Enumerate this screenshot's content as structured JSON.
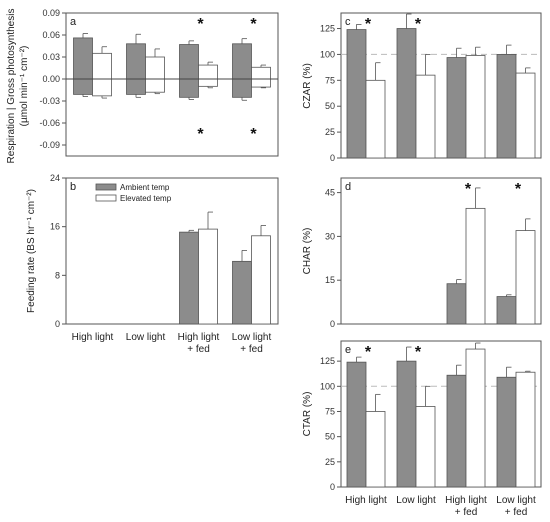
{
  "groups": [
    "High light",
    "Low light",
    "High light\n+ fed",
    "Low light\n+ fed"
  ],
  "legend": {
    "ambient": "Ambient temp",
    "elevated": "Elevated temp"
  },
  "colors": {
    "ambient": "#8c8c8c",
    "elevated": "#ffffff",
    "stroke": "#555555",
    "ref": "#bbbbbb"
  },
  "chart_data": [
    {
      "id": "a",
      "type": "bar",
      "panel_label": "a",
      "ylabel": "Respiration | Gross photosynthesis (µmol min⁻¹ cm⁻²)",
      "ylim": [
        -0.105,
        0.09
      ],
      "yticks": [
        -0.09,
        -0.06,
        -0.03,
        0.0,
        0.03,
        0.06,
        0.09
      ],
      "ytick_labels": [
        "-0.09",
        "-0.06",
        "-0.03",
        "0.00",
        "0.03",
        "0.06",
        "0.09"
      ],
      "zero_line": true,
      "series": [
        {
          "name": "Ambient temp",
          "positive": [
            0.056,
            0.048,
            0.047,
            0.048
          ],
          "positive_err": [
            0.006,
            0.013,
            0.005,
            0.007
          ],
          "negative": [
            -0.021,
            -0.021,
            -0.025,
            -0.025
          ],
          "negative_err": [
            0.003,
            0.004,
            0.003,
            0.004
          ]
        },
        {
          "name": "Elevated temp",
          "positive": [
            0.035,
            0.03,
            0.019,
            0.016
          ],
          "positive_err": [
            0.009,
            0.011,
            0.004,
            0.003
          ],
          "negative": [
            -0.023,
            -0.018,
            -0.01,
            -0.011
          ],
          "negative_err": [
            0.003,
            0.002,
            0.002,
            0.001
          ]
        }
      ],
      "significance": [
        {
          "group": 2,
          "position": "top",
          "text": "*"
        },
        {
          "group": 3,
          "position": "top",
          "text": "*"
        },
        {
          "group": 2,
          "position": "bottom",
          "text": "*"
        },
        {
          "group": 3,
          "position": "bottom",
          "text": "*"
        }
      ]
    },
    {
      "id": "b",
      "type": "bar",
      "panel_label": "b",
      "ylabel": "Feeding rate (BS hr⁻¹ cm⁻²)",
      "ylim": [
        0,
        24
      ],
      "yticks": [
        0,
        8,
        16,
        24
      ],
      "ytick_labels": [
        "0",
        "8",
        "16",
        "24"
      ],
      "legend_position": "top-left",
      "series": [
        {
          "name": "Ambient temp",
          "values": [
            null,
            null,
            15.1,
            10.3
          ],
          "errors": [
            null,
            null,
            0.3,
            1.8
          ]
        },
        {
          "name": "Elevated temp",
          "values": [
            null,
            null,
            15.6,
            14.5
          ],
          "errors": [
            null,
            null,
            2.8,
            1.7
          ]
        }
      ]
    },
    {
      "id": "c",
      "type": "bar",
      "panel_label": "c",
      "ylabel": "CZAR (%)",
      "ylim": [
        0,
        140
      ],
      "yticks": [
        0,
        25,
        50,
        75,
        100,
        125
      ],
      "ytick_labels": [
        "0",
        "25",
        "50",
        "75",
        "100",
        "125"
      ],
      "reference_line": 100,
      "series": [
        {
          "name": "Ambient temp",
          "values": [
            124,
            125,
            97,
            100
          ],
          "errors": [
            5,
            14,
            9,
            9
          ]
        },
        {
          "name": "Elevated temp",
          "values": [
            75,
            80,
            99,
            82
          ],
          "errors": [
            17,
            20,
            8,
            5
          ]
        }
      ],
      "significance": [
        {
          "group": 0,
          "position": "top",
          "text": "*"
        },
        {
          "group": 1,
          "position": "top",
          "text": "*"
        }
      ]
    },
    {
      "id": "d",
      "type": "bar",
      "panel_label": "d",
      "ylabel": "CHAR (%)",
      "ylim": [
        0,
        50
      ],
      "yticks": [
        0,
        15,
        30,
        45
      ],
      "ytick_labels": [
        "0",
        "15",
        "30",
        "45"
      ],
      "series": [
        {
          "name": "Ambient temp",
          "values": [
            null,
            null,
            13.8,
            9.4
          ],
          "errors": [
            null,
            null,
            1.4,
            0.6
          ]
        },
        {
          "name": "Elevated temp",
          "values": [
            null,
            null,
            39.6,
            32
          ],
          "errors": [
            null,
            null,
            7,
            4
          ]
        }
      ],
      "significance": [
        {
          "group": 2,
          "position": "top",
          "text": "*"
        },
        {
          "group": 3,
          "position": "top",
          "text": "*"
        }
      ]
    },
    {
      "id": "e",
      "type": "bar",
      "panel_label": "e",
      "ylabel": "CTAR (%)",
      "ylim": [
        0,
        145
      ],
      "yticks": [
        0,
        25,
        50,
        75,
        100,
        125
      ],
      "ytick_labels": [
        "0",
        "25",
        "50",
        "75",
        "100",
        "125"
      ],
      "reference_line": 100,
      "series": [
        {
          "name": "Ambient temp",
          "values": [
            124,
            125,
            111,
            109
          ],
          "errors": [
            5,
            14,
            10,
            10
          ]
        },
        {
          "name": "Elevated temp",
          "values": [
            75,
            80,
            137,
            114
          ],
          "errors": [
            17,
            20,
            6,
            1
          ]
        }
      ],
      "significance": [
        {
          "group": 0,
          "position": "top",
          "text": "*"
        },
        {
          "group": 1,
          "position": "top",
          "text": "*"
        }
      ]
    }
  ]
}
